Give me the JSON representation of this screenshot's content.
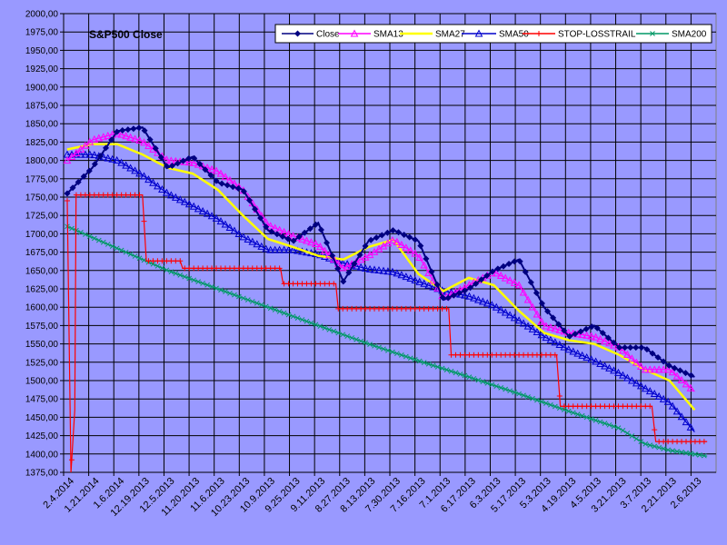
{
  "chart_data": {
    "type": "line",
    "title": "S&P500 Close",
    "ylim": [
      1375,
      2000
    ],
    "y_ticks": [
      "1375,00",
      "1400,00",
      "1425,00",
      "1450,00",
      "1475,00",
      "1500,00",
      "1525,00",
      "1550,00",
      "1575,00",
      "1600,00",
      "1625,00",
      "1650,00",
      "1675,00",
      "1700,00",
      "1725,00",
      "1750,00",
      "1775,00",
      "1800,00",
      "1825,00",
      "1850,00",
      "1875,00",
      "1900,00",
      "1925,00",
      "1950,00",
      "1975,00",
      "2000,00"
    ],
    "x_tick_labels": [
      "2.4.2014",
      "1.21.2014",
      "1.6.2014",
      "12.19.2013",
      "12.5.2013",
      "11.20.2013",
      "11.6.2013",
      "10.23.2013",
      "10.9.2013",
      "9.25.2013",
      "9.11.2013",
      "8.27.2013",
      "8.13.2013",
      "7.30.2013",
      "7.16.2013",
      "7.1.2013",
      "6.17.2013",
      "6.3.2013",
      "5.17.2013",
      "5.3.2013",
      "4.19.2013",
      "4.5.2013",
      "3.21.2013",
      "3.7.2013",
      "2.21.2013",
      "2.6.2013"
    ],
    "x_reversed": true,
    "grid": true,
    "legend_position": "top-right",
    "series": [
      {
        "name": "Close",
        "color": "#000080",
        "marker": "diamond",
        "x": [
          0,
          1,
          2,
          3,
          4,
          5,
          6,
          7,
          8,
          9,
          10,
          11,
          12,
          13,
          14,
          15,
          16,
          17,
          18,
          19,
          20,
          21,
          22,
          23,
          24,
          25
        ],
        "values": [
          1755,
          1790,
          1840,
          1845,
          1790,
          1805,
          1770,
          1760,
          1705,
          1690,
          1715,
          1635,
          1690,
          1705,
          1690,
          1610,
          1625,
          1650,
          1665,
          1600,
          1560,
          1575,
          1545,
          1545,
          1520,
          1505
        ]
      },
      {
        "name": "SMA13",
        "color": "#ff00ff",
        "marker": "triangle",
        "x": [
          0,
          1,
          2,
          3,
          4,
          5,
          6,
          7,
          8,
          9,
          10,
          11,
          12,
          13,
          14,
          15,
          16,
          17,
          18,
          19,
          20,
          21,
          22,
          23,
          24,
          25
        ],
        "values": [
          1800,
          1828,
          1837,
          1826,
          1800,
          1797,
          1785,
          1760,
          1712,
          1697,
          1685,
          1653,
          1670,
          1692,
          1670,
          1612,
          1630,
          1648,
          1630,
          1575,
          1565,
          1560,
          1545,
          1515,
          1515,
          1485
        ]
      },
      {
        "name": "SMA27",
        "color": "#ffff00",
        "marker": "none",
        "x": [
          0,
          1,
          2,
          3,
          4,
          5,
          6,
          7,
          8,
          9,
          10,
          11,
          12,
          13,
          14,
          15,
          16,
          17,
          18,
          19,
          20,
          21,
          22,
          23,
          24,
          25
        ],
        "values": [
          1815,
          1822,
          1822,
          1808,
          1790,
          1782,
          1760,
          1725,
          1693,
          1682,
          1670,
          1665,
          1682,
          1692,
          1645,
          1622,
          1640,
          1630,
          1595,
          1565,
          1555,
          1550,
          1535,
          1515,
          1500,
          1460
        ]
      },
      {
        "name": "SMA50",
        "color": "#0000cc",
        "marker": "triangle",
        "x": [
          0,
          1,
          2,
          3,
          4,
          5,
          6,
          7,
          8,
          9,
          10,
          11,
          12,
          13,
          14,
          15,
          16,
          17,
          18,
          19,
          20,
          21,
          22,
          23,
          24,
          25
        ],
        "values": [
          1808,
          1808,
          1800,
          1780,
          1755,
          1738,
          1720,
          1696,
          1678,
          1678,
          1672,
          1660,
          1652,
          1648,
          1635,
          1622,
          1615,
          1602,
          1582,
          1560,
          1542,
          1527,
          1510,
          1490,
          1470,
          1430
        ]
      },
      {
        "name": "STOP-LOSSTRAIL",
        "color": "#ff0000",
        "marker": "plus",
        "step": true,
        "x": [
          0,
          0.15,
          0.3,
          0.35,
          3,
          3.15,
          4.5,
          4.6,
          8.5,
          8.6,
          10.7,
          10.8,
          15.2,
          15.3,
          19.5,
          19.65,
          23.3,
          23.45,
          25.5
        ],
        "values": [
          1745,
          1375,
          1460,
          1753,
          1753,
          1663,
          1663,
          1653,
          1653,
          1632,
          1632,
          1598,
          1598,
          1535,
          1535,
          1465,
          1465,
          1417,
          1417
        ]
      },
      {
        "name": "SMA200",
        "color": "#009966",
        "marker": "x",
        "x": [
          0,
          2,
          4,
          6,
          8,
          10,
          12,
          14,
          16,
          18,
          20,
          22,
          23,
          24,
          25.5
        ],
        "values": [
          1710,
          1680,
          1650,
          1625,
          1600,
          1575,
          1550,
          1527,
          1505,
          1482,
          1458,
          1435,
          1414,
          1405,
          1397
        ]
      }
    ]
  }
}
